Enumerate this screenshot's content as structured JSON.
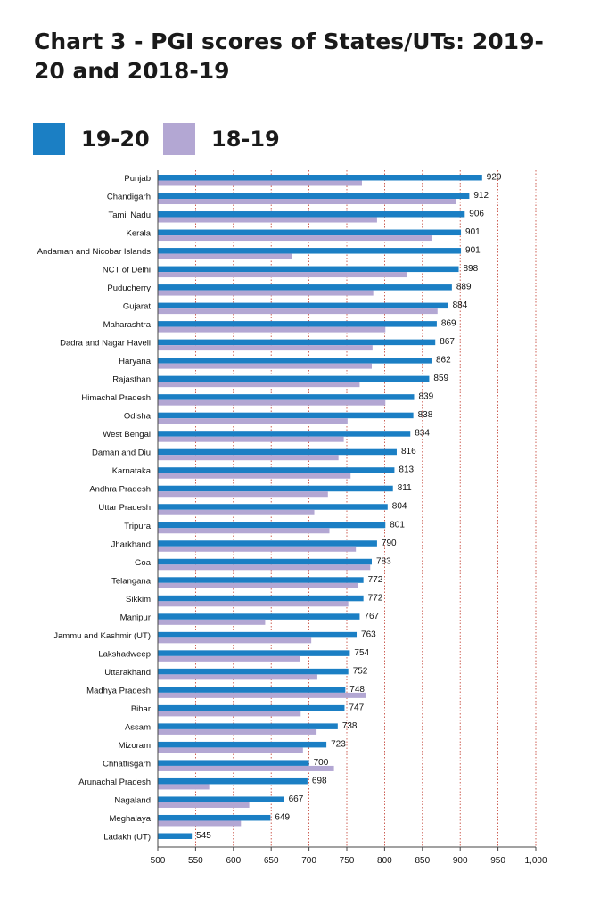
{
  "chart_data": {
    "type": "bar",
    "orientation": "horizontal",
    "title": "Chart 3 - PGI scores of States/UTs: 2019-20 and 2018-19",
    "xlim": [
      500,
      1000
    ],
    "ticks": [
      "500",
      "550",
      "600",
      "650",
      "700",
      "750",
      "800",
      "850",
      "900",
      "950",
      "1,000"
    ],
    "tick_values": [
      500,
      550,
      600,
      650,
      700,
      750,
      800,
      850,
      900,
      950,
      1000
    ],
    "grid": "vertical dotted",
    "legend_position": "top-left",
    "series": [
      {
        "name": "19-20",
        "color": "#1b7fc4",
        "values": [
          929,
          912,
          906,
          901,
          901,
          898,
          889,
          884,
          869,
          867,
          862,
          859,
          839,
          838,
          834,
          816,
          813,
          811,
          804,
          801,
          790,
          783,
          772,
          772,
          767,
          763,
          754,
          752,
          748,
          747,
          738,
          723,
          700,
          698,
          667,
          649,
          545
        ]
      },
      {
        "name": "18-19",
        "color": "#b3a7d3",
        "values": [
          770,
          895,
          790,
          862,
          678,
          829,
          785,
          870,
          801,
          784,
          783,
          767,
          801,
          751,
          746,
          739,
          755,
          725,
          707,
          727,
          762,
          781,
          765,
          752,
          642,
          703,
          688,
          711,
          775,
          689,
          710,
          692,
          733,
          568,
          621,
          610,
          null
        ]
      }
    ],
    "categories": [
      "Punjab",
      "Chandigarh",
      "Tamil Nadu",
      "Kerala",
      "Andaman and Nicobar Islands",
      "NCT of Delhi",
      "Puducherry",
      "Gujarat",
      "Maharashtra",
      "Dadra and Nagar Haveli",
      "Haryana",
      "Rajasthan",
      "Himachal Pradesh",
      "Odisha",
      "West Bengal",
      "Daman and Diu",
      "Karnataka",
      "Andhra Pradesh",
      "Uttar Pradesh",
      "Tripura",
      "Jharkhand",
      "Goa",
      "Telangana",
      "Sikkim",
      "Manipur",
      "Jammu and Kashmir (UT)",
      "Lakshadweep",
      "Uttarakhand",
      "Madhya Pradesh",
      "Bihar",
      "Assam",
      "Mizoram",
      "Chhattisgarh",
      "Arunachal Pradesh",
      "Nagaland",
      "Meghalaya",
      "Ladakh (UT)"
    ],
    "value_labels": [
      "929",
      "912",
      "906",
      "901",
      "901",
      "898",
      "889",
      "884",
      "869",
      "867",
      "862",
      "859",
      "839",
      "838",
      "834",
      "816",
      "813",
      "811",
      "804",
      "801",
      "790",
      "783",
      "772",
      "772",
      "767",
      "763",
      "754",
      "752",
      "748",
      "747",
      "738",
      "723",
      "700",
      "698",
      "667",
      "649",
      "545"
    ]
  }
}
